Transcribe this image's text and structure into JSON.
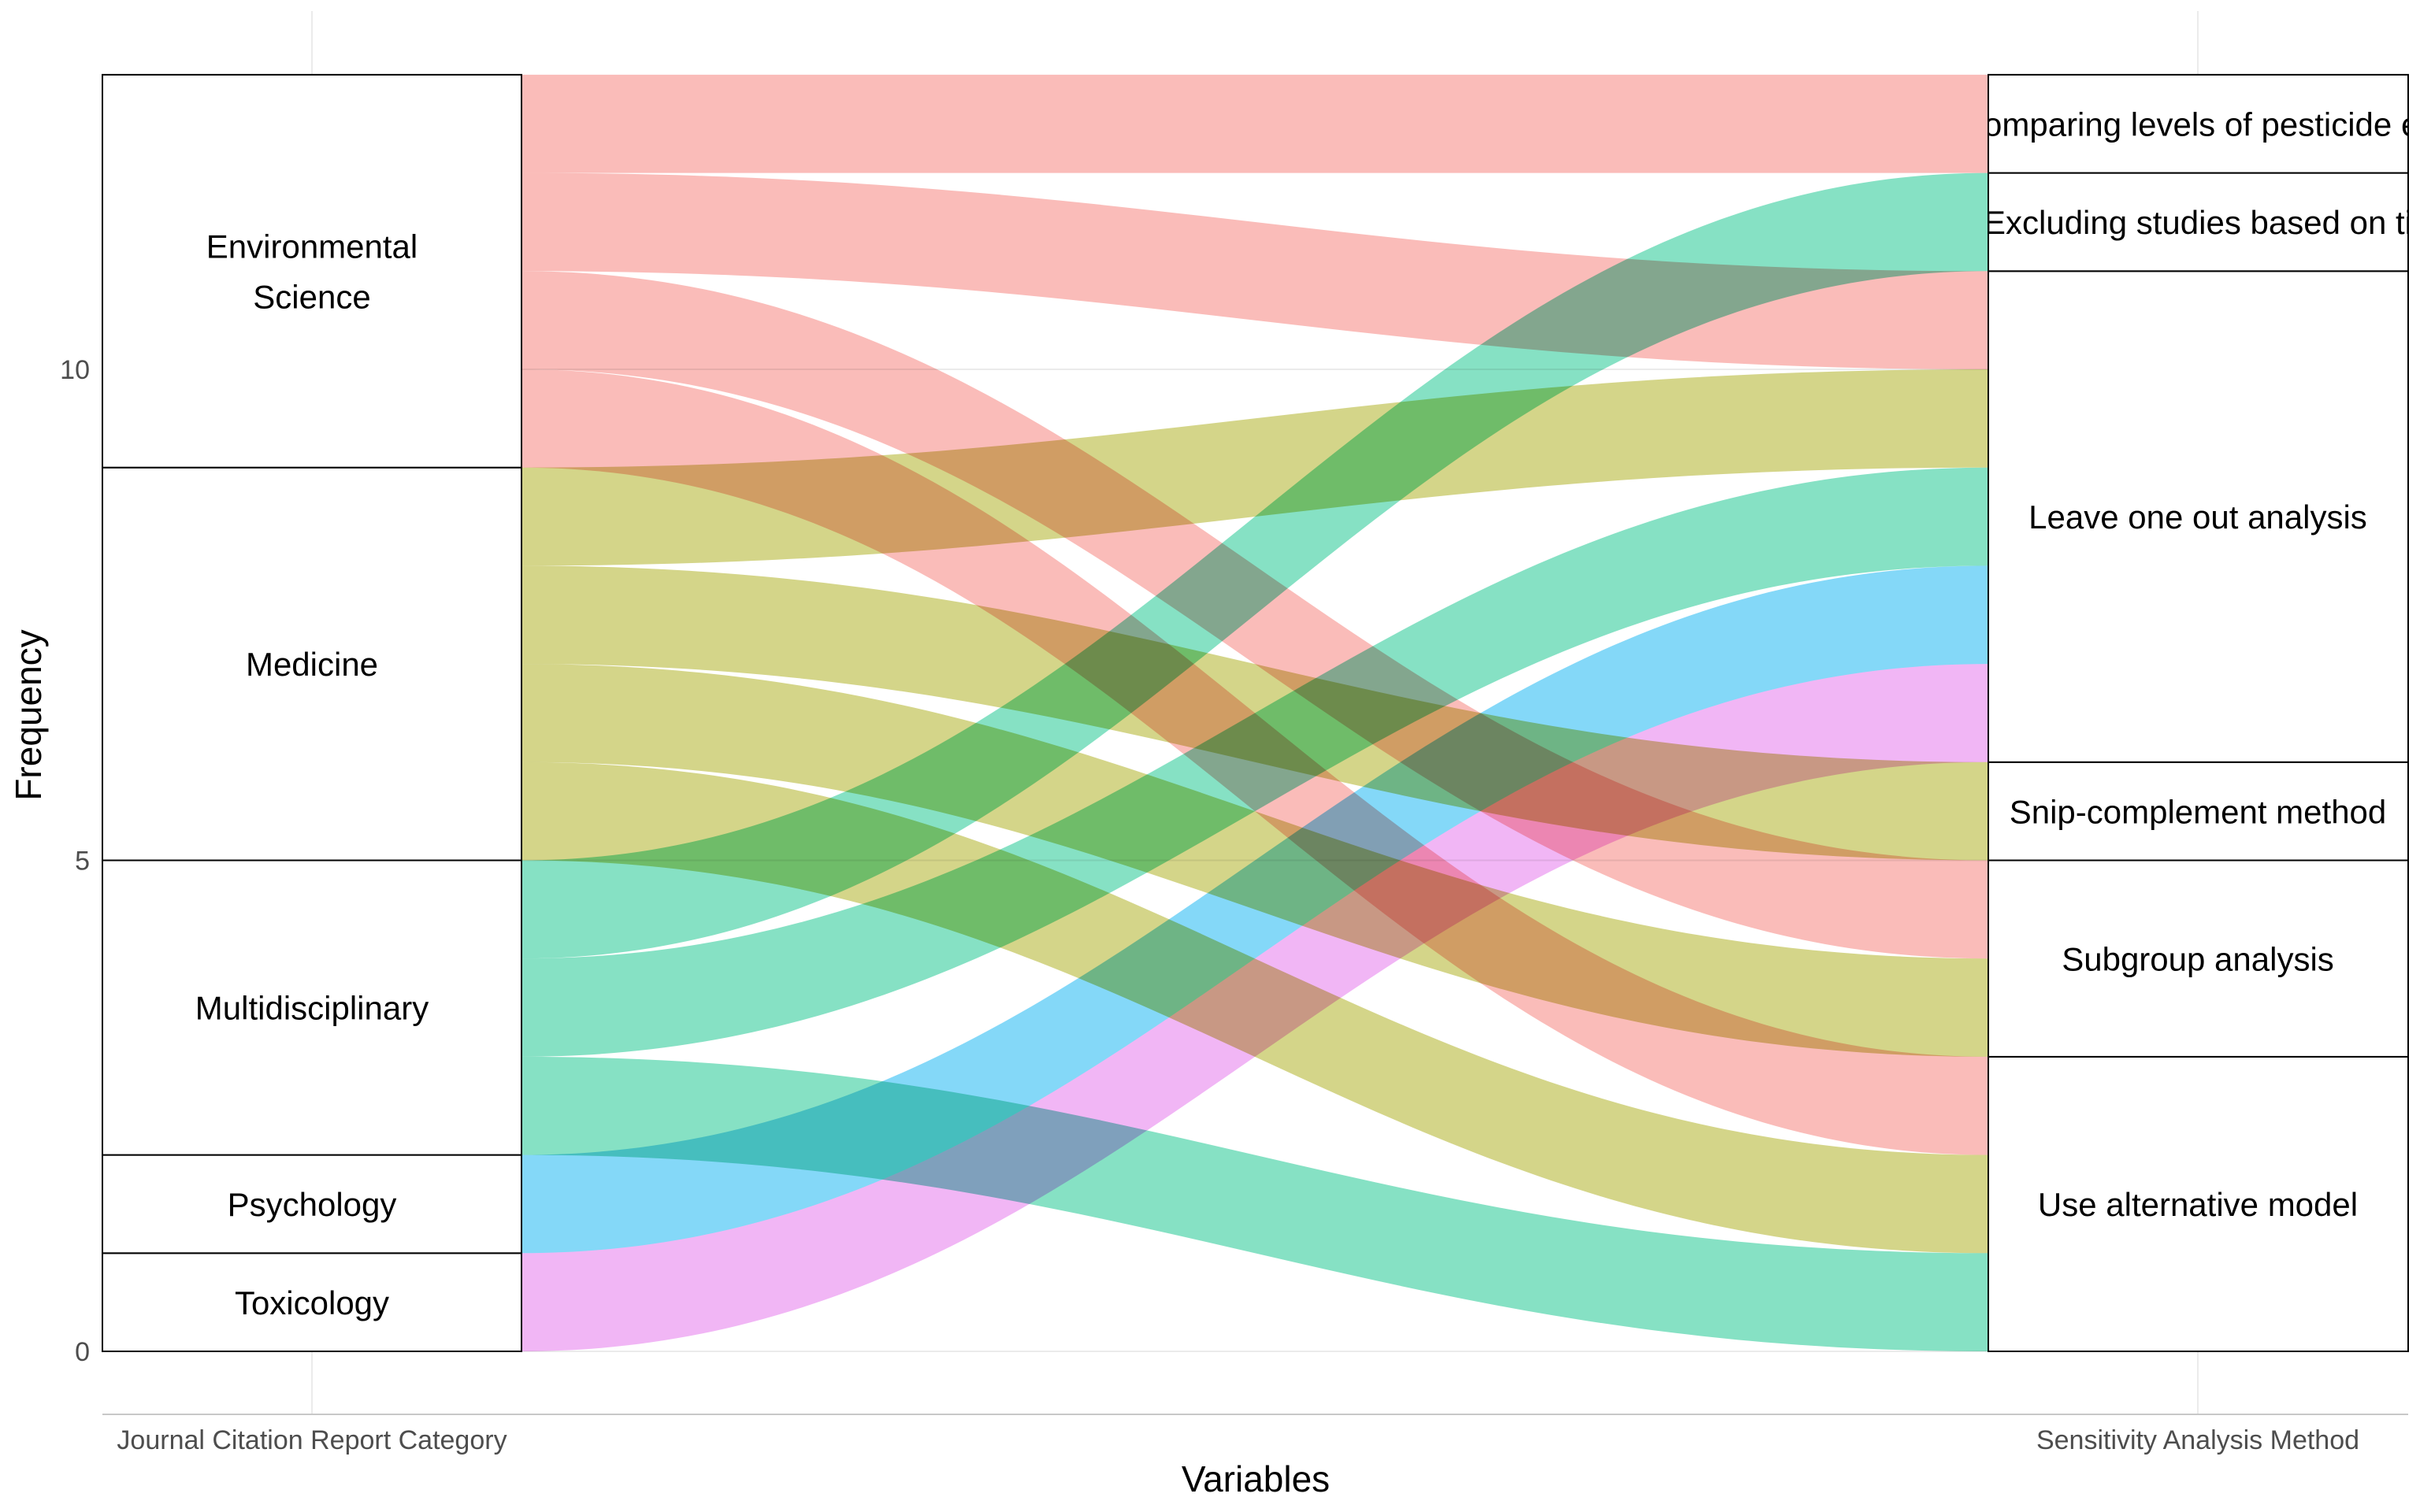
{
  "chart_data": {
    "type": "alluvial",
    "title": "",
    "xlabel": "Variables",
    "ylabel": "Frequency",
    "ylim": [
      0,
      13
    ],
    "yticks": [
      0,
      5,
      10
    ],
    "grid": true,
    "legend": "none",
    "axes": [
      "Journal Citation Report Category",
      "Sensitivity Analysis Method"
    ],
    "left_nodes": [
      {
        "name": "Toxicology",
        "label_lines": [
          "Toxicology"
        ],
        "color": "#F0B3F5"
      },
      {
        "name": "Psychology",
        "label_lines": [
          "Psychology"
        ],
        "color": "#7FD6F8"
      },
      {
        "name": "Multidisciplinary",
        "label_lines": [
          "Multidisciplinary"
        ],
        "color": "#81E0C2"
      },
      {
        "name": "Medicine",
        "label_lines": [
          "Medicine"
        ],
        "color": "#D2D384"
      },
      {
        "name": "Environmental Science",
        "label_lines": [
          "Environmental",
          "Science"
        ],
        "color": "#FAB9B6"
      }
    ],
    "right_nodes": [
      {
        "name": "Use alternative model",
        "label": "Use alternative model"
      },
      {
        "name": "Subgroup analysis",
        "label": "Subgroup analysis"
      },
      {
        "name": "Snip-complement method",
        "label": "Snip-complement method"
      },
      {
        "name": "Leave one out analysis",
        "label": "Leave one out analysis"
      },
      {
        "name": "Excluding studies based on time",
        "label": "Excluding studies based on ti"
      },
      {
        "name": "Comparing levels of pesticide exposure",
        "label": "Comparing levels of pesticide ex"
      }
    ],
    "flows": [
      {
        "from": "Toxicology",
        "to": "Leave one out analysis",
        "value": 1,
        "ls": 0,
        "rs": 6
      },
      {
        "from": "Psychology",
        "to": "Leave one out analysis",
        "value": 1,
        "ls": 1,
        "rs": 7
      },
      {
        "from": "Multidisciplinary",
        "to": "Use alternative model",
        "value": 1,
        "ls": 2,
        "rs": 0
      },
      {
        "from": "Multidisciplinary",
        "to": "Leave one out analysis",
        "value": 1,
        "ls": 3,
        "rs": 8
      },
      {
        "from": "Multidisciplinary",
        "to": "Excluding studies based on time",
        "value": 1,
        "ls": 4,
        "rs": 11
      },
      {
        "from": "Medicine",
        "to": "Use alternative model",
        "value": 1,
        "ls": 5,
        "rs": 1
      },
      {
        "from": "Medicine",
        "to": "Subgroup analysis",
        "value": 1,
        "ls": 6,
        "rs": 3
      },
      {
        "from": "Medicine",
        "to": "Snip-complement method",
        "value": 1,
        "ls": 7,
        "rs": 5
      },
      {
        "from": "Medicine",
        "to": "Leave one out analysis",
        "value": 1,
        "ls": 8,
        "rs": 9
      },
      {
        "from": "Environmental Science",
        "to": "Use alternative model",
        "value": 1,
        "ls": 9,
        "rs": 2
      },
      {
        "from": "Environmental Science",
        "to": "Subgroup analysis",
        "value": 1,
        "ls": 10,
        "rs": 4
      },
      {
        "from": "Environmental Science",
        "to": "Leave one out analysis",
        "value": 1,
        "ls": 11,
        "rs": 10
      },
      {
        "from": "Environmental Science",
        "to": "Comparing levels of pesticide exposure",
        "value": 1,
        "ls": 12,
        "rs": 12
      }
    ]
  }
}
